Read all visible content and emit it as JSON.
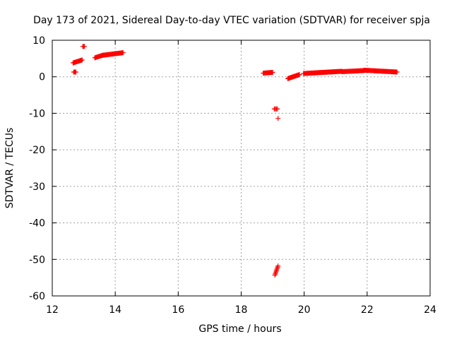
{
  "chart_data": {
    "type": "scatter",
    "title": "Day 173 of 2021, Sidereal Day-to-day VTEC variation (SDTVAR) for receiver spja",
    "xlabel": "GPS time / hours",
    "ylabel": "SDTVAR / TECUs",
    "xlim": [
      12,
      24
    ],
    "ylim": [
      -60,
      10
    ],
    "xticks": [
      "12",
      "14",
      "16",
      "18",
      "20",
      "22",
      "24"
    ],
    "yticks": [
      "10",
      "0",
      "-10",
      "-20",
      "-30",
      "-40",
      "-50",
      "-60"
    ],
    "grid": true,
    "marker": "plus",
    "color": "#ff0000",
    "series": [
      {
        "segments": [
          {
            "x0": 12.68,
            "x1": 12.75,
            "y0": 1.3,
            "y1": 1.3,
            "n": 4
          },
          {
            "x0": 12.66,
            "x1": 12.95,
            "y0": 3.8,
            "y1": 4.6,
            "n": 14
          },
          {
            "x0": 12.97,
            "x1": 13.02,
            "y0": 8.3,
            "y1": 8.3,
            "n": 3
          },
          {
            "x0": 13.35,
            "x1": 13.6,
            "y0": 5.2,
            "y1": 5.9,
            "n": 12
          },
          {
            "x0": 13.6,
            "x1": 14.25,
            "y0": 5.9,
            "y1": 6.6,
            "n": 30
          },
          {
            "x0": 18.7,
            "x1": 19.0,
            "y0": 1.0,
            "y1": 1.2,
            "n": 14
          },
          {
            "x0": 19.05,
            "x1": 19.15,
            "y0": -8.8,
            "y1": -8.8,
            "n": 4
          },
          {
            "x0": 19.17,
            "x1": 19.17,
            "y0": -11.4,
            "y1": -11.4,
            "n": 1
          },
          {
            "x0": 19.07,
            "x1": 19.17,
            "y0": -54.3,
            "y1": -51.8,
            "n": 8
          },
          {
            "x0": 19.48,
            "x1": 19.85,
            "y0": -0.5,
            "y1": 0.6,
            "n": 20
          },
          {
            "x0": 19.98,
            "x1": 21.2,
            "y0": 0.9,
            "y1": 1.5,
            "n": 55
          },
          {
            "x0": 21.2,
            "x1": 21.9,
            "y0": 1.4,
            "y1": 1.7,
            "n": 32
          },
          {
            "x0": 21.9,
            "x1": 22.95,
            "y0": 1.8,
            "y1": 1.3,
            "n": 46
          }
        ]
      }
    ]
  }
}
